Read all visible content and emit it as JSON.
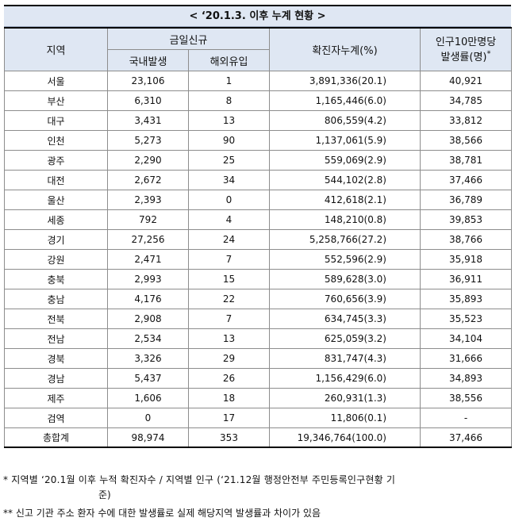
{
  "title": "< ‘20.1.3. 이후 누계 현황 >",
  "header": {
    "region": "지역",
    "daily_new": "금일신규",
    "domestic": "국내발생",
    "overseas": "해외유입",
    "cumulative": "확진자누계(%)",
    "per100k_line1": "인구10만명당",
    "per100k_line2": "발생률(명)",
    "per100k_mark": "*"
  },
  "rows": [
    {
      "region": "서울",
      "domestic": "23,106",
      "overseas": "1",
      "cumulative": "3,891,336(20.1)",
      "rate": "40,921"
    },
    {
      "region": "부산",
      "domestic": "6,310",
      "overseas": "8",
      "cumulative": "1,165,446(6.0)",
      "rate": "34,785"
    },
    {
      "region": "대구",
      "domestic": "3,431",
      "overseas": "13",
      "cumulative": "806,559(4.2)",
      "rate": "33,812"
    },
    {
      "region": "인천",
      "domestic": "5,273",
      "overseas": "90",
      "cumulative": "1,137,061(5.9)",
      "rate": "38,566"
    },
    {
      "region": "광주",
      "domestic": "2,290",
      "overseas": "25",
      "cumulative": "559,069(2.9)",
      "rate": "38,781"
    },
    {
      "region": "대전",
      "domestic": "2,672",
      "overseas": "34",
      "cumulative": "544,102(2.8)",
      "rate": "37,466"
    },
    {
      "region": "울산",
      "domestic": "2,393",
      "overseas": "0",
      "cumulative": "412,618(2.1)",
      "rate": "36,789"
    },
    {
      "region": "세종",
      "domestic": "792",
      "overseas": "4",
      "cumulative": "148,210(0.8)",
      "rate": "39,853"
    },
    {
      "region": "경기",
      "domestic": "27,256",
      "overseas": "24",
      "cumulative": "5,258,766(27.2)",
      "rate": "38,766"
    },
    {
      "region": "강원",
      "domestic": "2,471",
      "overseas": "7",
      "cumulative": "552,596(2.9)",
      "rate": "35,918"
    },
    {
      "region": "충북",
      "domestic": "2,993",
      "overseas": "15",
      "cumulative": "589,628(3.0)",
      "rate": "36,911"
    },
    {
      "region": "충남",
      "domestic": "4,176",
      "overseas": "22",
      "cumulative": "760,656(3.9)",
      "rate": "35,893"
    },
    {
      "region": "전북",
      "domestic": "2,908",
      "overseas": "7",
      "cumulative": "634,745(3.3)",
      "rate": "35,523"
    },
    {
      "region": "전남",
      "domestic": "2,534",
      "overseas": "13",
      "cumulative": "625,059(3.2)",
      "rate": "34,104"
    },
    {
      "region": "경북",
      "domestic": "3,326",
      "overseas": "29",
      "cumulative": "831,747(4.3)",
      "rate": "31,666"
    },
    {
      "region": "경남",
      "domestic": "5,437",
      "overseas": "26",
      "cumulative": "1,156,429(6.0)",
      "rate": "34,893"
    },
    {
      "region": "제주",
      "domestic": "1,606",
      "overseas": "18",
      "cumulative": "260,931(1.3)",
      "rate": "38,556"
    },
    {
      "region": "검역",
      "domestic": "0",
      "overseas": "17",
      "cumulative": "11,806(0.1)",
      "rate": "-"
    },
    {
      "region": "총합계",
      "domestic": "98,974",
      "overseas": "353",
      "cumulative": "19,346,764(100.0)",
      "rate": "37,466"
    }
  ],
  "notes": {
    "note1_line1": "* 지역별 ‘20.1월 이후 누적 확진자수 / 지역별 인구 (‘21.12월 행정안전부 주민등록인구현황 기",
    "note1_line2": "준)",
    "note2": "** 신고 기관 주소 환자 수에 대한 발생률로 실제 해당지역 발생률과 차이가 있음"
  },
  "colors": {
    "header_bg": "#dfe7f3",
    "border": "#8d8d8d"
  }
}
